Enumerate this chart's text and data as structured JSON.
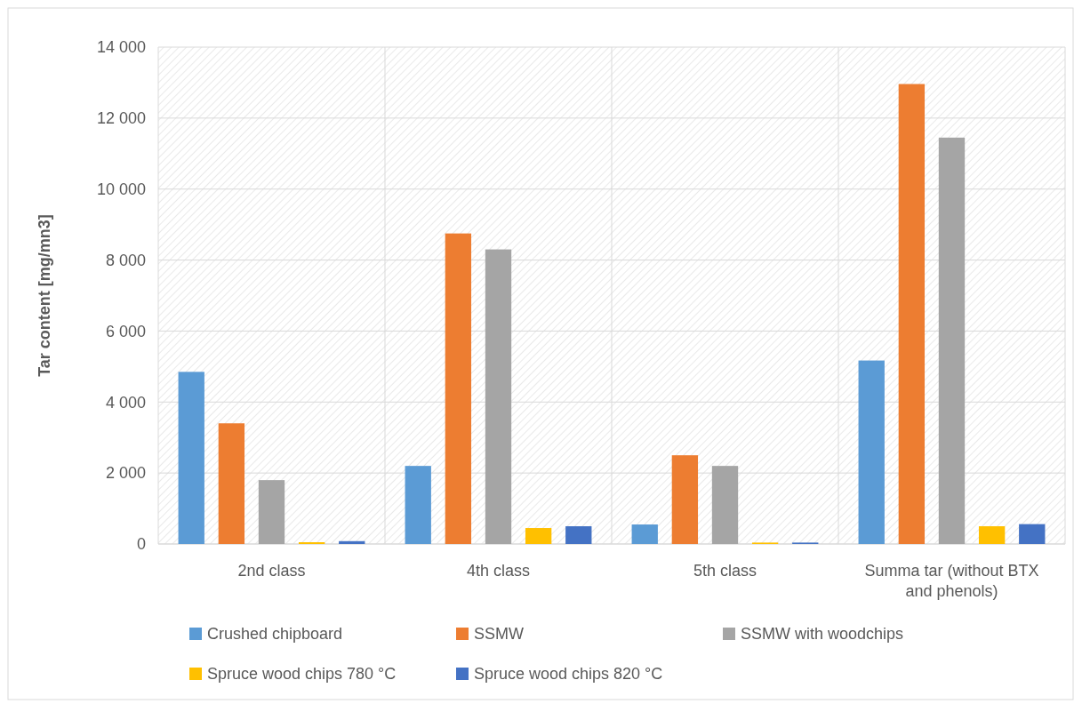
{
  "chart_data": {
    "type": "bar",
    "ylabel": "Tar content [mg/mn3]",
    "categories": [
      "2nd class",
      "4th class",
      "5th class",
      "Summa tar (without BTX and phenols)"
    ],
    "series": [
      {
        "name": "Crushed chipboard",
        "color": "#5b9bd5",
        "values": [
          4850,
          2200,
          550,
          5170
        ]
      },
      {
        "name": "SSMW",
        "color": "#ed7d31",
        "values": [
          3400,
          8750,
          2500,
          12960
        ]
      },
      {
        "name": "SSMW with woodchips",
        "color": "#a5a5a5",
        "values": [
          1800,
          8300,
          2200,
          11450
        ]
      },
      {
        "name": "Spruce wood chips 780 °C",
        "color": "#ffc000",
        "values": [
          50,
          450,
          40,
          500
        ]
      },
      {
        "name": "Spruce wood chips 820 °C",
        "color": "#4472c4",
        "values": [
          80,
          500,
          40,
          560
        ]
      }
    ],
    "ylim": [
      0,
      14000
    ],
    "yticks": [
      {
        "value": 0,
        "label": "0"
      },
      {
        "value": 2000,
        "label": "2 000"
      },
      {
        "value": 4000,
        "label": "4 000"
      },
      {
        "value": 6000,
        "label": "6 000"
      },
      {
        "value": 8000,
        "label": "8 000"
      },
      {
        "value": 10000,
        "label": "10 000"
      },
      {
        "value": 12000,
        "label": "12 000"
      },
      {
        "value": 14000,
        "label": "14 000"
      }
    ],
    "grid": true,
    "legend": "bottom"
  }
}
